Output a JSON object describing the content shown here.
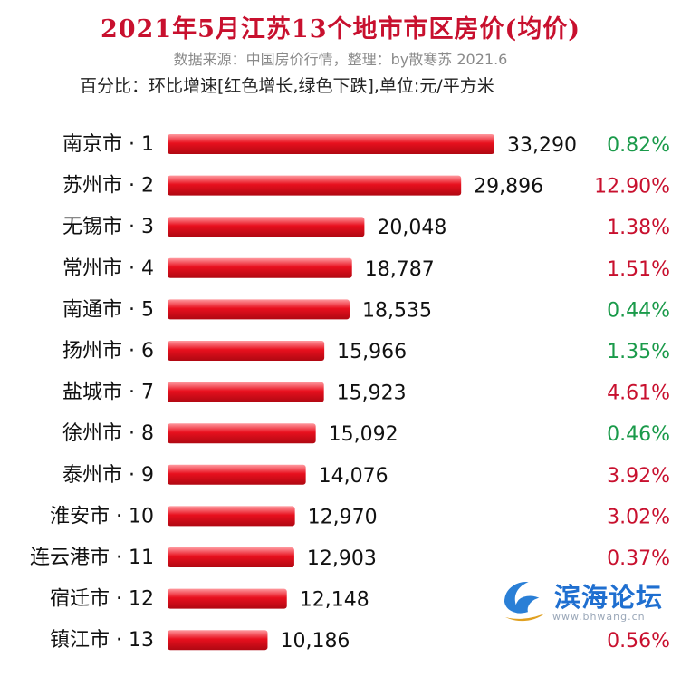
{
  "header": {
    "title": "2021年5月江苏13个地市市区房价(均价)",
    "source": "数据来源：中国房价行情，整理：by散寒苏 2021.6",
    "legend": "百分比：环比增速[红色增长,绿色下跌],单位:元/平方米"
  },
  "colors": {
    "bar": "#e8101e",
    "increase": "#c8102e",
    "decrease": "#1a9a4a",
    "title": "#c8102e"
  },
  "watermark": {
    "text": "滨海论坛",
    "url": "www.bhwang.cn",
    "icon": "wave-logo-icon"
  },
  "chart_data": {
    "type": "bar",
    "orientation": "horizontal",
    "unit": "元/平方米",
    "xlim": [
      0,
      33290
    ],
    "categories": [
      "南京市 · 1",
      "苏州市 · 2",
      "无锡市 · 3",
      "常州市 · 4",
      "南通市 · 5",
      "扬州市 · 6",
      "盐城市 · 7",
      "徐州市 · 8",
      "泰州市 · 9",
      "淮安市 · 10",
      "连云港市 · 11",
      "宿迁市 · 12",
      "镇江市 · 13"
    ],
    "values": [
      33290,
      29896,
      20048,
      18787,
      18535,
      15966,
      15923,
      15092,
      14076,
      12970,
      12903,
      12148,
      10186
    ],
    "value_labels": [
      "33,290",
      "29,896",
      "20,048",
      "18,787",
      "18,535",
      "15,966",
      "15,923",
      "15,092",
      "14,076",
      "12,970",
      "12,903",
      "12,148",
      "10,186"
    ],
    "change_labels": [
      "0.82%",
      "12.90%",
      "1.38%",
      "1.51%",
      "0.44%",
      "1.35%",
      "4.61%",
      "0.46%",
      "3.92%",
      "3.02%",
      "0.37%",
      "",
      "0.56%"
    ],
    "change_direction": [
      "down",
      "up",
      "up",
      "up",
      "down",
      "down",
      "up",
      "down",
      "up",
      "up",
      "up",
      "",
      "up"
    ],
    "grid": false,
    "legend": "none"
  }
}
